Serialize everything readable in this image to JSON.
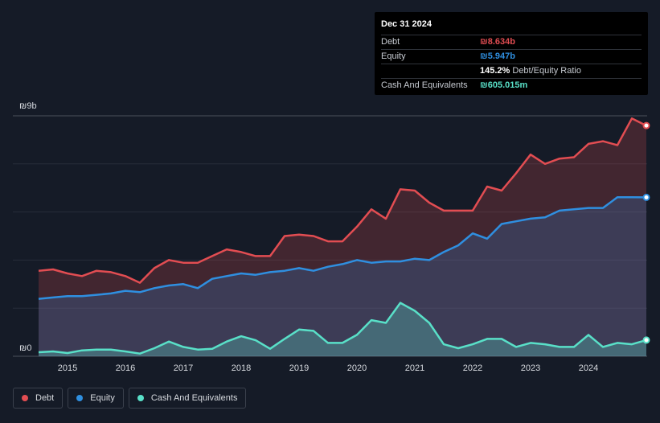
{
  "tooltip": {
    "date": "Dec 31 2024",
    "rows": [
      {
        "label": "Debt",
        "value": "₪8.634b",
        "color": "#e24d52"
      },
      {
        "label": "Equity",
        "value": "₪5.947b",
        "color": "#2f8fe0"
      },
      {
        "label": "",
        "value": "145.2%",
        "suffix": "Debt/Equity Ratio",
        "color": "#ffffff"
      },
      {
        "label": "Cash And Equivalents",
        "value": "₪605.015m",
        "color": "#59e0c8"
      }
    ]
  },
  "legend": [
    {
      "label": "Debt",
      "color": "#e24d52"
    },
    {
      "label": "Equity",
      "color": "#2f8fe0"
    },
    {
      "label": "Cash And Equivalents",
      "color": "#59e0c8"
    }
  ],
  "chart_data": {
    "type": "area",
    "ylim": [
      0,
      9
    ],
    "y_unit": "billion ILS",
    "y_tick_labels": [
      {
        "value": 9,
        "label": "₪9b"
      },
      {
        "value": 0,
        "label": "₪0"
      }
    ],
    "x_ticks": [
      2015,
      2016,
      2017,
      2018,
      2019,
      2020,
      2021,
      2022,
      2023,
      2024
    ],
    "xlim": [
      2014.5,
      2025.0
    ],
    "grid": true,
    "legend_position": "bottom-left",
    "series": [
      {
        "name": "Debt",
        "color": "#e24d52",
        "x": [
          2014.5,
          2014.75,
          2015.0,
          2015.25,
          2015.5,
          2015.75,
          2016.0,
          2016.25,
          2016.5,
          2016.75,
          2017.0,
          2017.25,
          2017.5,
          2017.75,
          2018.0,
          2018.25,
          2018.5,
          2018.75,
          2019.0,
          2019.25,
          2019.5,
          2019.75,
          2020.0,
          2020.25,
          2020.5,
          2020.75,
          2021.0,
          2021.25,
          2021.5,
          2021.75,
          2022.0,
          2022.25,
          2022.5,
          2022.75,
          2023.0,
          2023.25,
          2023.5,
          2023.75,
          2024.0,
          2024.25,
          2024.5,
          2024.75,
          2025.0
        ],
        "values": [
          3.2,
          3.25,
          3.1,
          3.0,
          3.2,
          3.15,
          3.0,
          2.75,
          3.3,
          3.6,
          3.5,
          3.5,
          3.75,
          4.0,
          3.9,
          3.75,
          3.75,
          4.5,
          4.55,
          4.5,
          4.3,
          4.3,
          4.85,
          5.5,
          5.15,
          6.25,
          6.2,
          5.75,
          5.45,
          5.45,
          5.45,
          6.35,
          6.2,
          6.85,
          7.55,
          7.2,
          7.4,
          7.45,
          7.95,
          8.05,
          7.9,
          8.9,
          8.634
        ]
      },
      {
        "name": "Equity",
        "color": "#2f8fe0",
        "x": [
          2014.5,
          2014.75,
          2015.0,
          2015.25,
          2015.5,
          2015.75,
          2016.0,
          2016.25,
          2016.5,
          2016.75,
          2017.0,
          2017.25,
          2017.5,
          2017.75,
          2018.0,
          2018.25,
          2018.5,
          2018.75,
          2019.0,
          2019.25,
          2019.5,
          2019.75,
          2020.0,
          2020.25,
          2020.5,
          2020.75,
          2021.0,
          2021.25,
          2021.5,
          2021.75,
          2022.0,
          2022.25,
          2022.5,
          2022.75,
          2023.0,
          2023.25,
          2023.5,
          2023.75,
          2024.0,
          2024.25,
          2024.5,
          2024.75,
          2025.0
        ],
        "values": [
          2.15,
          2.2,
          2.25,
          2.25,
          2.3,
          2.35,
          2.45,
          2.4,
          2.55,
          2.65,
          2.7,
          2.55,
          2.9,
          3.0,
          3.1,
          3.05,
          3.15,
          3.2,
          3.3,
          3.2,
          3.35,
          3.45,
          3.6,
          3.5,
          3.55,
          3.55,
          3.65,
          3.6,
          3.9,
          4.15,
          4.6,
          4.4,
          4.95,
          5.05,
          5.15,
          5.2,
          5.45,
          5.5,
          5.55,
          5.55,
          5.95,
          5.95,
          5.947
        ]
      },
      {
        "name": "Cash And Equivalents",
        "color": "#59e0c8",
        "x": [
          2014.5,
          2014.75,
          2015.0,
          2015.25,
          2015.5,
          2015.75,
          2016.0,
          2016.25,
          2016.5,
          2016.75,
          2017.0,
          2017.25,
          2017.5,
          2017.75,
          2018.0,
          2018.25,
          2018.5,
          2018.75,
          2019.0,
          2019.25,
          2019.5,
          2019.75,
          2020.0,
          2020.25,
          2020.5,
          2020.75,
          2021.0,
          2021.25,
          2021.5,
          2021.75,
          2022.0,
          2022.25,
          2022.5,
          2022.75,
          2023.0,
          2023.25,
          2023.5,
          2023.75,
          2024.0,
          2024.25,
          2024.5,
          2024.75,
          2025.0
        ],
        "values": [
          0.15,
          0.18,
          0.12,
          0.22,
          0.25,
          0.25,
          0.18,
          0.1,
          0.3,
          0.55,
          0.35,
          0.25,
          0.28,
          0.55,
          0.75,
          0.6,
          0.28,
          0.65,
          1.0,
          0.95,
          0.5,
          0.5,
          0.8,
          1.35,
          1.25,
          2.0,
          1.7,
          1.25,
          0.45,
          0.3,
          0.45,
          0.65,
          0.65,
          0.35,
          0.5,
          0.45,
          0.35,
          0.35,
          0.8,
          0.35,
          0.5,
          0.45,
          0.605
        ]
      }
    ]
  }
}
